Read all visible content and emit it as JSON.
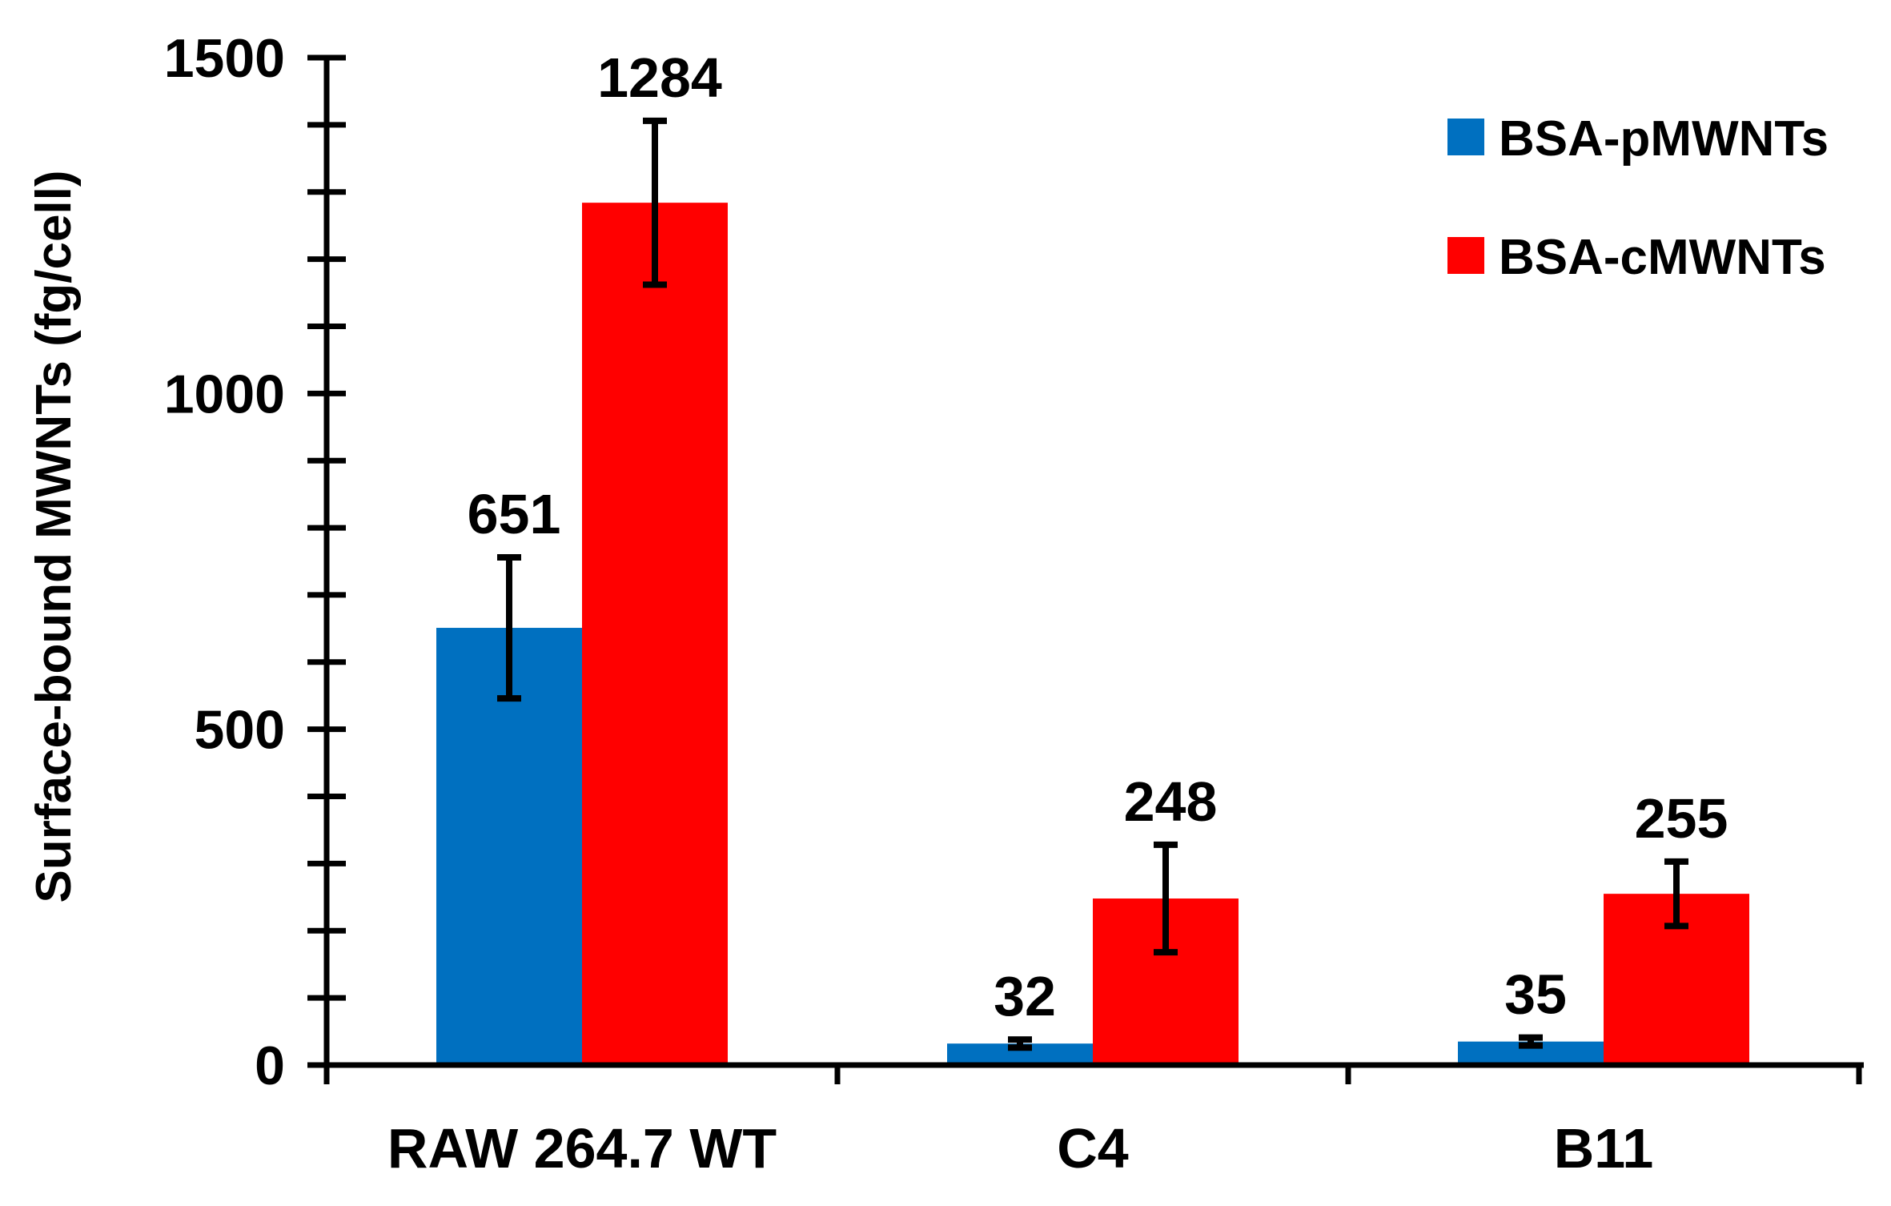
{
  "chart_data": {
    "type": "bar",
    "title": "",
    "xlabel": "",
    "ylabel": "Surface-bound MWNTs (fg/cell)",
    "ylim": [
      0,
      1500
    ],
    "yticks": [
      0,
      500,
      1000,
      1500
    ],
    "minor_tick_step": 100,
    "grid": false,
    "legend_position": "top-right",
    "categories": [
      "RAW 264.7 WT",
      "C4",
      "B11"
    ],
    "series": [
      {
        "name": "BSA-pMWNTs",
        "color": "#0070C0",
        "values": [
          651,
          32,
          35
        ],
        "errors": [
          105,
          6,
          6
        ],
        "labels": [
          "651",
          "32",
          "35"
        ]
      },
      {
        "name": "BSA-cMWNTs",
        "color": "#FF0000",
        "values": [
          1284,
          248,
          255
        ],
        "errors": [
          122,
          80,
          48
        ],
        "labels": [
          "1284",
          "248",
          "255"
        ]
      }
    ]
  }
}
